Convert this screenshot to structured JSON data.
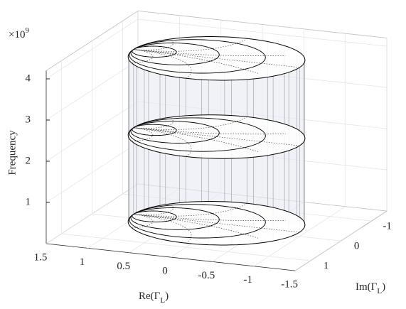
{
  "chart_data": {
    "type": "smith3d",
    "xlabel": [
      "Re(Γ",
      "L",
      ")"
    ],
    "ylabel": [
      "Im(Γ",
      "L",
      ")"
    ],
    "zlabel": "Frequency",
    "z_multiplier": [
      "×10",
      "9"
    ],
    "xlim": [
      -1.5,
      1.5
    ],
    "xticks": [
      -1.5,
      -1,
      -0.5,
      0,
      0.5,
      1,
      1.5
    ],
    "ylim": [
      -1.5,
      1.5
    ],
    "yticks": [
      -1,
      0,
      1
    ],
    "zlim": [
      0,
      4.2
    ],
    "zticks": [
      1,
      2,
      3,
      4
    ],
    "frequencies": [
      0.1,
      2.2,
      4.1
    ],
    "resistance_circles": [
      0.3,
      1,
      3
    ],
    "reactance_arcs": [
      0.3,
      1,
      3,
      -0.3,
      -1,
      -3
    ],
    "color": "#000000",
    "fill": "#e6e9f2",
    "grid": true
  }
}
